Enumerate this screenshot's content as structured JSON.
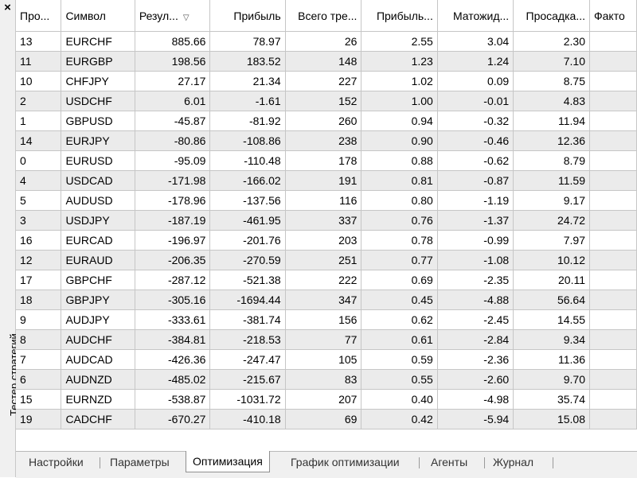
{
  "panel": {
    "title": "Тестер стратегий",
    "close_glyph": "×"
  },
  "table": {
    "columns": [
      "Про...",
      "Символ",
      "Резул...",
      "Прибыль",
      "Всего тре...",
      "Прибыль...",
      "Матожид...",
      "Просадка...",
      "Факто"
    ],
    "sort_glyph": "▽",
    "rows": [
      [
        "13",
        "EURCHF",
        "885.66",
        "78.97",
        "26",
        "2.55",
        "3.04",
        "2.30"
      ],
      [
        "11",
        "EURGBP",
        "198.56",
        "183.52",
        "148",
        "1.23",
        "1.24",
        "7.10"
      ],
      [
        "10",
        "CHFJPY",
        "27.17",
        "21.34",
        "227",
        "1.02",
        "0.09",
        "8.75"
      ],
      [
        "2",
        "USDCHF",
        "6.01",
        "-1.61",
        "152",
        "1.00",
        "-0.01",
        "4.83"
      ],
      [
        "1",
        "GBPUSD",
        "-45.87",
        "-81.92",
        "260",
        "0.94",
        "-0.32",
        "11.94"
      ],
      [
        "14",
        "EURJPY",
        "-80.86",
        "-108.86",
        "238",
        "0.90",
        "-0.46",
        "12.36"
      ],
      [
        "0",
        "EURUSD",
        "-95.09",
        "-110.48",
        "178",
        "0.88",
        "-0.62",
        "8.79"
      ],
      [
        "4",
        "USDCAD",
        "-171.98",
        "-166.02",
        "191",
        "0.81",
        "-0.87",
        "11.59"
      ],
      [
        "5",
        "AUDUSD",
        "-178.96",
        "-137.56",
        "116",
        "0.80",
        "-1.19",
        "9.17"
      ],
      [
        "3",
        "USDJPY",
        "-187.19",
        "-461.95",
        "337",
        "0.76",
        "-1.37",
        "24.72"
      ],
      [
        "16",
        "EURCAD",
        "-196.97",
        "-201.76",
        "203",
        "0.78",
        "-0.99",
        "7.97"
      ],
      [
        "12",
        "EURAUD",
        "-206.35",
        "-270.59",
        "251",
        "0.77",
        "-1.08",
        "10.12"
      ],
      [
        "17",
        "GBPCHF",
        "-287.12",
        "-521.38",
        "222",
        "0.69",
        "-2.35",
        "20.11"
      ],
      [
        "18",
        "GBPJPY",
        "-305.16",
        "-1694.44",
        "347",
        "0.45",
        "-4.88",
        "56.64"
      ],
      [
        "9",
        "AUDJPY",
        "-333.61",
        "-381.74",
        "156",
        "0.62",
        "-2.45",
        "14.55"
      ],
      [
        "8",
        "AUDCHF",
        "-384.81",
        "-218.53",
        "77",
        "0.61",
        "-2.84",
        "9.34"
      ],
      [
        "7",
        "AUDCAD",
        "-426.36",
        "-247.47",
        "105",
        "0.59",
        "-2.36",
        "11.36"
      ],
      [
        "6",
        "AUDNZD",
        "-485.02",
        "-215.67",
        "83",
        "0.55",
        "-2.60",
        "9.70"
      ],
      [
        "15",
        "EURNZD",
        "-538.87",
        "-1031.72",
        "207",
        "0.40",
        "-4.98",
        "35.74"
      ],
      [
        "19",
        "CADCHF",
        "-670.27",
        "-410.18",
        "69",
        "0.42",
        "-5.94",
        "15.08"
      ]
    ]
  },
  "tabs": [
    {
      "label": "Настройки",
      "active": false
    },
    {
      "label": "Параметры",
      "active": false
    },
    {
      "label": "Оптимизация",
      "active": true
    },
    {
      "label": "График оптимизации",
      "active": false
    },
    {
      "label": "Агенты",
      "active": false
    },
    {
      "label": "Журнал",
      "active": false
    }
  ]
}
